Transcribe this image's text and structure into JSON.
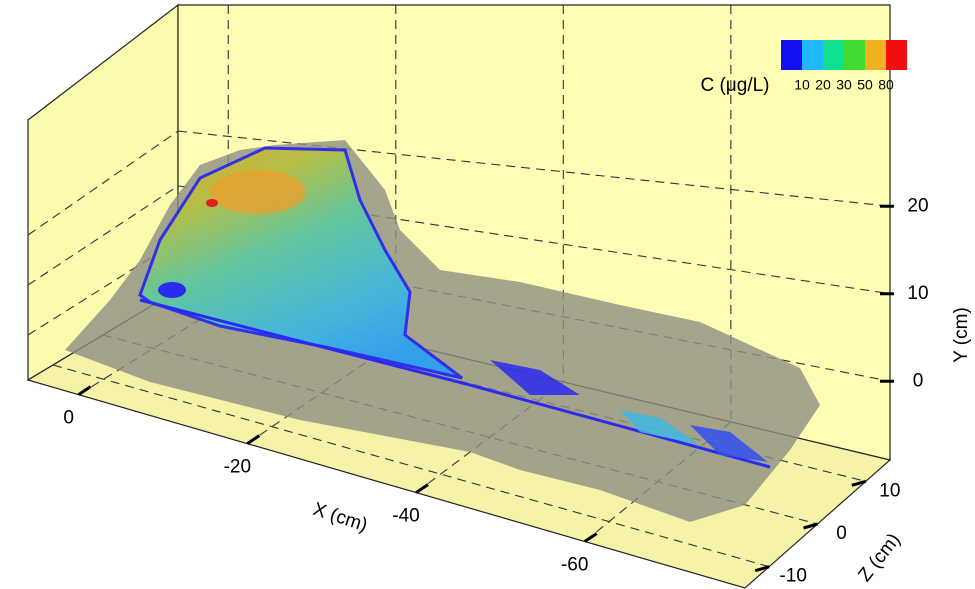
{
  "chart_data": {
    "type": "surface3d",
    "x_label": "X (cm)",
    "y_label": "Y (cm)",
    "z_label": "Z (cm)",
    "xlim": [
      6,
      -79
    ],
    "xticks": [
      0,
      -20,
      -40,
      -60
    ],
    "ylim": [
      -9,
      43
    ],
    "yticks": [
      0,
      10,
      20
    ],
    "zlim": [
      -15,
      15
    ],
    "zticks": [
      -10,
      0,
      10
    ],
    "grid": true,
    "colorbar": {
      "title": "C (μg/L)",
      "levels": [
        10,
        20,
        30,
        50,
        80
      ],
      "colors": [
        "#1010f0",
        "#20b8ff",
        "#10e090",
        "#40dd30",
        "#f0b020",
        "#f01010"
      ]
    }
  }
}
